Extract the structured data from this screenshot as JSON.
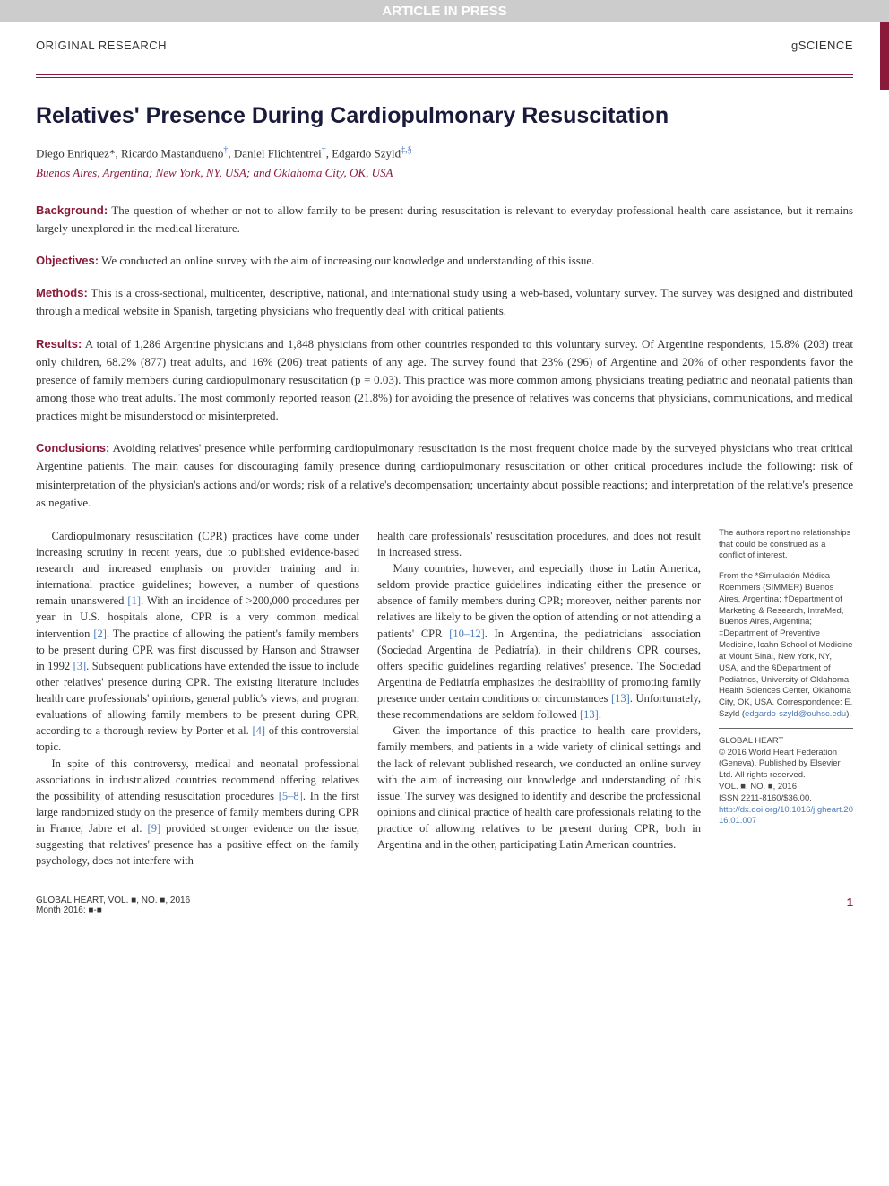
{
  "banner": "ARTICLE IN PRESS",
  "header": {
    "left": "ORIGINAL RESEARCH",
    "right": "gSCIENCE"
  },
  "title": "Relatives' Presence During Cardiopulmonary Resuscitation",
  "authors": "Diego Enriquez*, Ricardo Mastandueno†, Daniel Flichtentrei†, Edgardo Szyld‡,§",
  "affiliation": "Buenos Aires, Argentina; New York, NY, USA; and Oklahoma City, OK, USA",
  "abstract": {
    "background": {
      "label": "Background:",
      "text": " The question of whether or not to allow family to be present during resuscitation is relevant to everyday professional health care assistance, but it remains largely unexplored in the medical literature."
    },
    "objectives": {
      "label": "Objectives:",
      "text": " We conducted an online survey with the aim of increasing our knowledge and understanding of this issue."
    },
    "methods": {
      "label": "Methods:",
      "text": " This is a cross-sectional, multicenter, descriptive, national, and international study using a web-based, voluntary survey. The survey was designed and distributed through a medical website in Spanish, targeting physicians who frequently deal with critical patients."
    },
    "results": {
      "label": "Results:",
      "text": " A total of 1,286 Argentine physicians and 1,848 physicians from other countries responded to this voluntary survey. Of Argentine respondents, 15.8% (203) treat only children, 68.2% (877) treat adults, and 16% (206) treat patients of any age. The survey found that 23% (296) of Argentine and 20% of other respondents favor the presence of family members during cardiopulmonary resuscitation (p = 0.03). This practice was more common among physicians treating pediatric and neonatal patients than among those who treat adults. The most commonly reported reason (21.8%) for avoiding the presence of relatives was concerns that physicians, communications, and medical practices might be misunderstood or misinterpreted."
    },
    "conclusions": {
      "label": "Conclusions:",
      "text": " Avoiding relatives' presence while performing cardiopulmonary resuscitation is the most frequent choice made by the surveyed physicians who treat critical Argentine patients. The main causes for discouraging family presence during cardiopulmonary resuscitation or other critical procedures include the following: risk of misinterpretation of the physician's actions and/or words; risk of a relative's decompensation; uncertainty about possible reactions; and interpretation of the relative's presence as negative."
    }
  },
  "body": {
    "col1": {
      "p1a": "Cardiopulmonary resuscitation (CPR) practices have come under increasing scrutiny in recent years, due to published evidence-based research and increased emphasis on provider training and in international practice guidelines; however, a number of questions remain unanswered ",
      "r1": "[1]",
      "p1b": ". With an incidence of >200,000 procedures per year in U.S. hospitals alone, CPR is a very common medical intervention ",
      "r2": "[2]",
      "p1c": ". The practice of allowing the patient's family members to be present during CPR was first discussed by Hanson and Strawser in 1992 ",
      "r3": "[3]",
      "p1d": ". Subsequent publications have extended the issue to include other relatives' presence during CPR. The existing literature includes health care professionals' opinions, general public's views, and program evaluations of allowing family members to be present during CPR, according to a thorough review by Porter et al. ",
      "r4": "[4]",
      "p1e": " of this controversial topic.",
      "p2a": "In spite of this controversy, medical and neonatal professional associations in industrialized countries recommend offering relatives the possibility of attending resuscitation procedures ",
      "r58": "[5–8]",
      "p2b": ". In the first large randomized study on the presence of family members during CPR in France, Jabre et al. ",
      "r9": "[9]",
      "p2c": " provided stronger evidence on the issue, suggesting that relatives' presence has a positive effect on the family psychology, does not interfere with"
    },
    "col2": {
      "p1": "health care professionals' resuscitation procedures, and does not result in increased stress.",
      "p2a": "Many countries, however, and especially those in Latin America, seldom provide practice guidelines indicating either the presence or absence of family members during CPR; moreover, neither parents nor relatives are likely to be given the option of attending or not attending a patients' CPR ",
      "r1012": "[10–12]",
      "p2b": ". In Argentina, the pediatricians' association (Sociedad Argentina de Pediatría), in their children's CPR courses, offers specific guidelines regarding relatives' presence. The Sociedad Argentina de Pediatría emphasizes the desirability of promoting family presence under certain conditions or circumstances ",
      "r13a": "[13]",
      "p2c": ". Unfortunately, these recommendations are seldom followed ",
      "r13b": "[13]",
      "p2d": ".",
      "p3": "Given the importance of this practice to health care providers, family members, and patients in a wide variety of clinical settings and the lack of relevant published research, we conducted an online survey with the aim of increasing our knowledge and understanding of this issue. The survey was designed to identify and describe the professional opinions and clinical practice of health care professionals relating to the practice of allowing relatives to be present during CPR, both in Argentina and in the other, participating Latin American countries."
    }
  },
  "sidebar": {
    "disclosure": "The authors report no relationships that could be construed as a conflict of interest.",
    "from": "From the *Simulación Médica Roemmers (SIMMER) Buenos Aires, Argentina; †Department of Marketing & Research, IntraMed, Buenos Aires, Argentina; ‡Department of Preventive Medicine, Icahn School of Medicine at Mount Sinai, New York, NY, USA, and the §Department of Pediatrics, University of Oklahoma Health Sciences Center, Oklahoma City, OK, USA. Correspondence: E. Szyld (",
    "email": "edgardo-szyld@ouhsc.edu",
    "from_end": ").",
    "journal": "GLOBAL HEART",
    "copyright": "© 2016 World Heart Federation (Geneva). Published by Elsevier Ltd. All rights reserved.",
    "vol": "VOL. ■, NO. ■, 2016",
    "issn": "ISSN 2211-8160/$36.00.",
    "doi": "http://dx.doi.org/10.1016/j.gheart.2016.01.007"
  },
  "footer": {
    "left1": "GLOBAL HEART, VOL. ■, NO. ■, 2016",
    "left2": "Month 2016: ■-■",
    "page": "1"
  },
  "colors": {
    "accent": "#8b1a3a",
    "link": "#4a7ab8",
    "banner_bg": "#cccccc"
  }
}
